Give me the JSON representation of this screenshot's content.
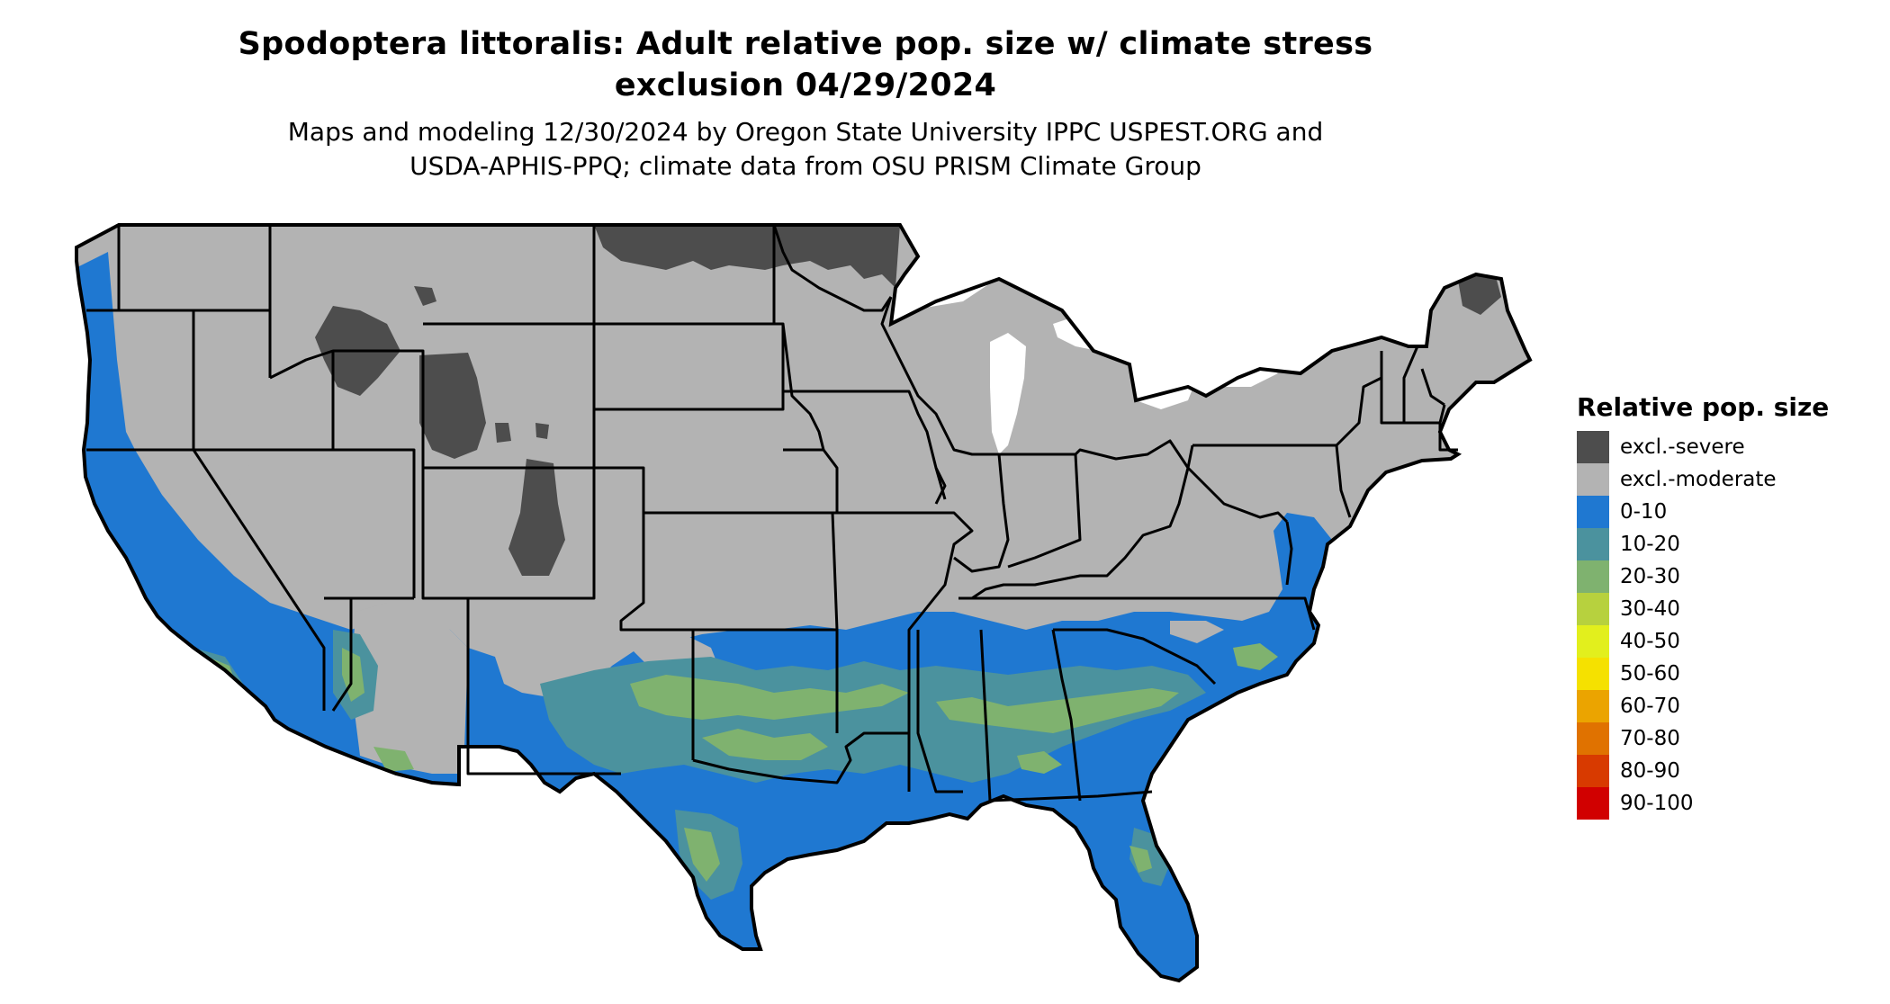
{
  "title": {
    "line1": "Spodoptera littoralis: Adult relative pop. size w/ climate stress",
    "line2": "exclusion 04/29/2024"
  },
  "subtitle": {
    "line1": "Maps and modeling 12/30/2024 by Oregon State University IPPC USPEST.ORG and",
    "line2": "USDA-APHIS-PPQ; climate data from OSU PRISM Climate Group"
  },
  "legend": {
    "title": "Relative pop. size",
    "items": [
      {
        "label": "excl.-severe",
        "color": "#4d4d4d"
      },
      {
        "label": "excl.-moderate",
        "color": "#b3b3b3"
      },
      {
        "label": "0-10",
        "color": "#1f78d1"
      },
      {
        "label": "10-20",
        "color": "#4b929e"
      },
      {
        "label": "20-30",
        "color": "#7fb26f"
      },
      {
        "label": "30-40",
        "color": "#b7d13e"
      },
      {
        "label": "40-50",
        "color": "#e2ef1d"
      },
      {
        "label": "50-60",
        "color": "#f5e100"
      },
      {
        "label": "60-70",
        "color": "#eba400"
      },
      {
        "label": "70-80",
        "color": "#e07200"
      },
      {
        "label": "80-90",
        "color": "#d83a00"
      },
      {
        "label": "90-100",
        "color": "#d10000"
      }
    ]
  },
  "map": {
    "region": "contiguous-us",
    "colors": {
      "severe": "#4d4d4d",
      "moderate": "#b3b3b3",
      "low": "#1f78d1",
      "mid": "#4b929e",
      "green": "#7fb26f",
      "border": "#000000",
      "water": "#ffffff"
    }
  }
}
